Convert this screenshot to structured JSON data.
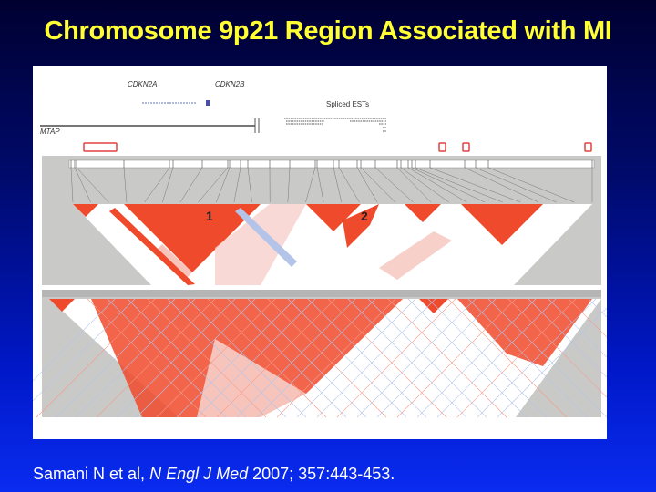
{
  "slide": {
    "title": "Chromosome 9p21 Region Associated with MI",
    "citation": {
      "authors": "Samani N et al, ",
      "journal": "N Engl J Med",
      "details": " 2007; 357:443-453."
    }
  },
  "figure": {
    "gene_labels": [
      "CDKN2A",
      "CDKN2B",
      "MTAP",
      "Spliced ESTs"
    ],
    "block_labels": [
      "1",
      "2"
    ],
    "colors": {
      "strong_ld": "#f04a2c",
      "weak_ld": "#f7c4bc",
      "blue": "#b4c4e8",
      "panel": "#c9c9c7"
    }
  }
}
